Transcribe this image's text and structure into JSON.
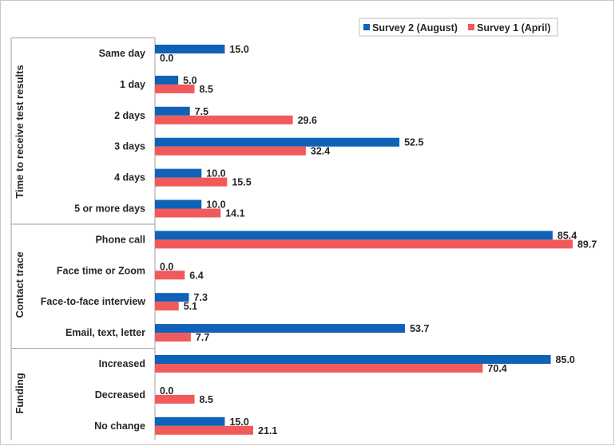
{
  "chart_data": {
    "type": "bar",
    "orientation": "horizontal",
    "title": "",
    "xlabel": "",
    "ylabel": "",
    "xlim": [
      0,
      90
    ],
    "grid": false,
    "legend_position": "top-right",
    "colors": {
      "Survey 2 (August)": "#0f62b8",
      "Survey 1 (April)": "#f05a5a",
      "axis": "#a0a0a0"
    },
    "groups": [
      {
        "label": "Time to receive test results",
        "categories": [
          "Same day",
          "1 day",
          "2 days",
          "3 days",
          "4 days",
          "5 or more days"
        ]
      },
      {
        "label": "Contact trace",
        "categories": [
          "Phone call",
          "Face time or Zoom",
          "Face-to-face interview",
          "Email, text, letter"
        ]
      },
      {
        "label": "Funding",
        "categories": [
          "Increased",
          "Decreased",
          "No change"
        ]
      }
    ],
    "categories": [
      "Same day",
      "1 day",
      "2 days",
      "3 days",
      "4 days",
      "5 or more days",
      "Phone call",
      "Face time or Zoom",
      "Face-to-face interview",
      "Email, text, letter",
      "Increased",
      "Decreased",
      "No change"
    ],
    "series": [
      {
        "name": "Survey 2 (August)",
        "values": [
          15.0,
          5.0,
          7.5,
          52.5,
          10.0,
          10.0,
          85.4,
          0.0,
          7.3,
          53.7,
          85.0,
          0.0,
          15.0
        ]
      },
      {
        "name": "Survey 1 (April)",
        "values": [
          0.0,
          8.5,
          29.6,
          32.4,
          15.5,
          14.1,
          89.7,
          6.4,
          5.1,
          7.7,
          70.4,
          8.5,
          21.1
        ]
      }
    ]
  }
}
